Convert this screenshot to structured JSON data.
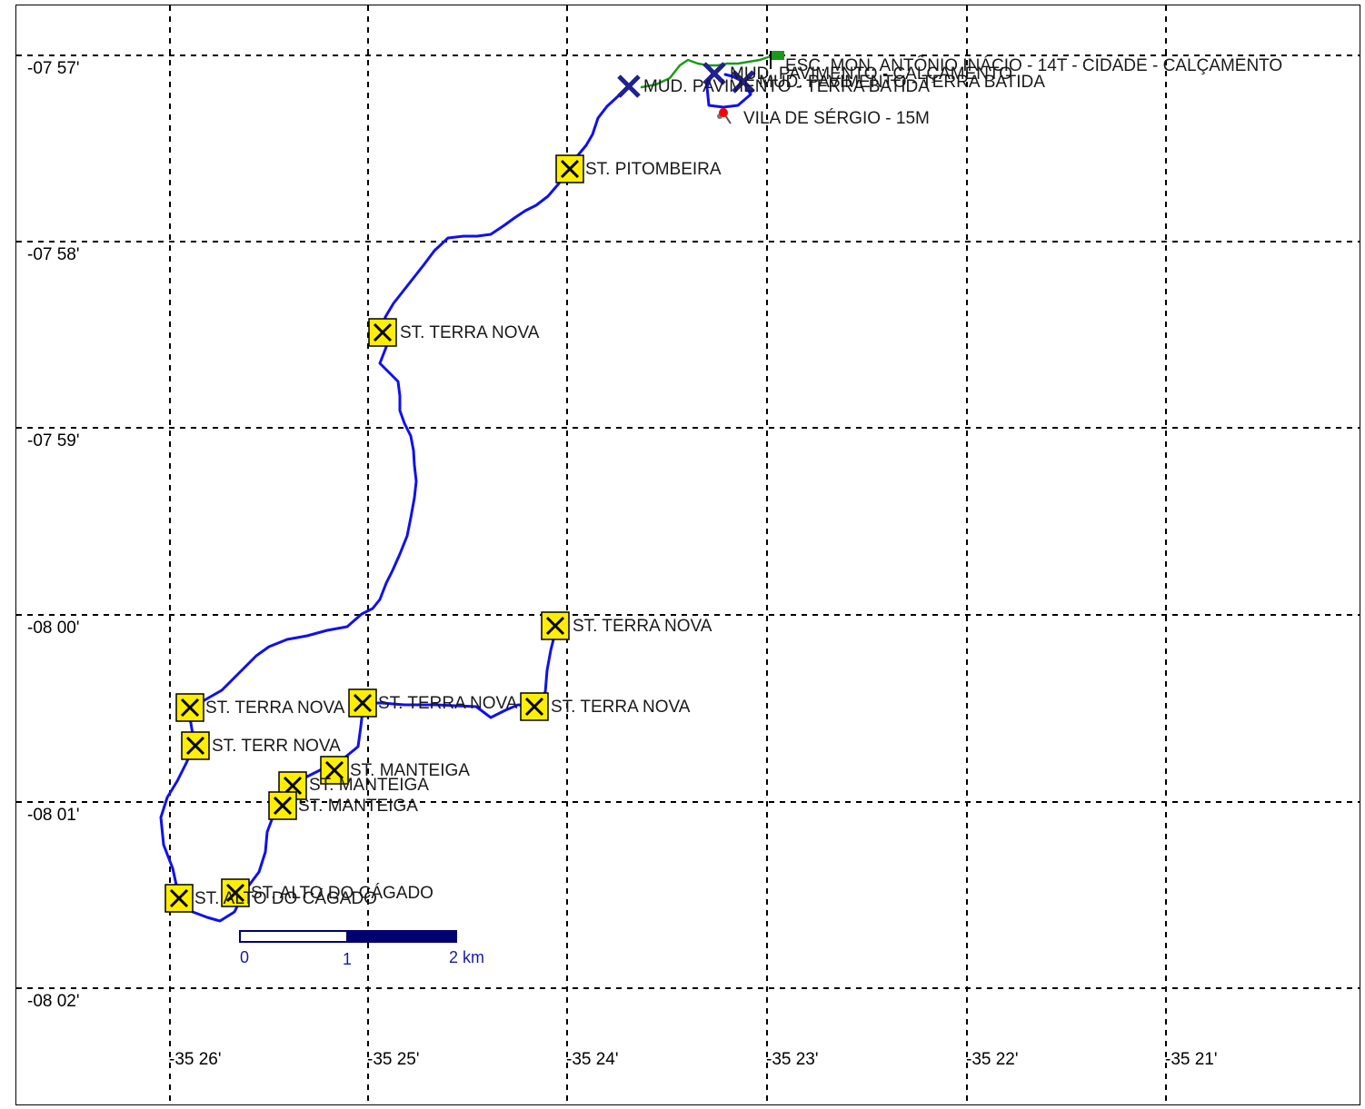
{
  "map": {
    "lat_labels": [
      "-07 57'",
      "-07 58'",
      "-07 59'",
      "-08 00'",
      "-08 01'",
      "-08 02'"
    ],
    "lon_labels": [
      "-35 26'",
      "-35 25'",
      "-35 24'",
      "-35 23'",
      "-35 22'",
      "-35 21'"
    ],
    "waypoints": [
      {
        "name": "ST. PITOMBEIRA",
        "type": "yellow-x-icon"
      },
      {
        "name": "ST. TERRA NOVA",
        "type": "yellow-x-icon"
      },
      {
        "name": "ST. TERRA NOVA",
        "type": "yellow-x-icon"
      },
      {
        "name": "ST. TERRA NOVA",
        "type": "yellow-x-icon"
      },
      {
        "name": "ST. TERRA NOVA",
        "type": "yellow-x-icon"
      },
      {
        "name": "ST. TERRA NOVA",
        "type": "yellow-x-icon"
      },
      {
        "name": "ST. TERR NOVA",
        "type": "yellow-x-icon"
      },
      {
        "name": "ST. MANTEIGA",
        "type": "yellow-x-icon"
      },
      {
        "name": "ST. MANTEIGA",
        "type": "yellow-x-icon"
      },
      {
        "name": "ST. MANTEIGA",
        "type": "yellow-x-icon"
      },
      {
        "name": "ST. ALTO DO CÁGADO",
        "type": "yellow-x-icon"
      },
      {
        "name": "ST. ALTO DO CÁGADO",
        "type": "yellow-x-icon"
      },
      {
        "name": "MUD. PAVIMENTO - TERRA BATIDA",
        "type": "blue-x-icon"
      },
      {
        "name": "MUD. PAVIMENTO - CALÇAMENTO",
        "type": "blue-x-icon"
      },
      {
        "name": "MUD. PAVIMENTO - TERRA BATIDA",
        "type": "blue-x-icon"
      },
      {
        "name": "VILA DE SÉRGIO - 15M",
        "type": "pin-icon"
      },
      {
        "name": "ESC. MON. ANTÔNIO INÁCIO - 14T - CIDADE - CALÇAMENTO",
        "type": "flag-icon"
      }
    ],
    "scale": {
      "labels": [
        "0",
        "1",
        "2 km"
      ]
    },
    "colors": {
      "track": "#1010ee",
      "track_green": "#1a9a1a",
      "waypoint_fill": "#ffee00",
      "blue_marker": "#202090",
      "pin": "#ff0000",
      "scale_dark": "#000070"
    }
  }
}
